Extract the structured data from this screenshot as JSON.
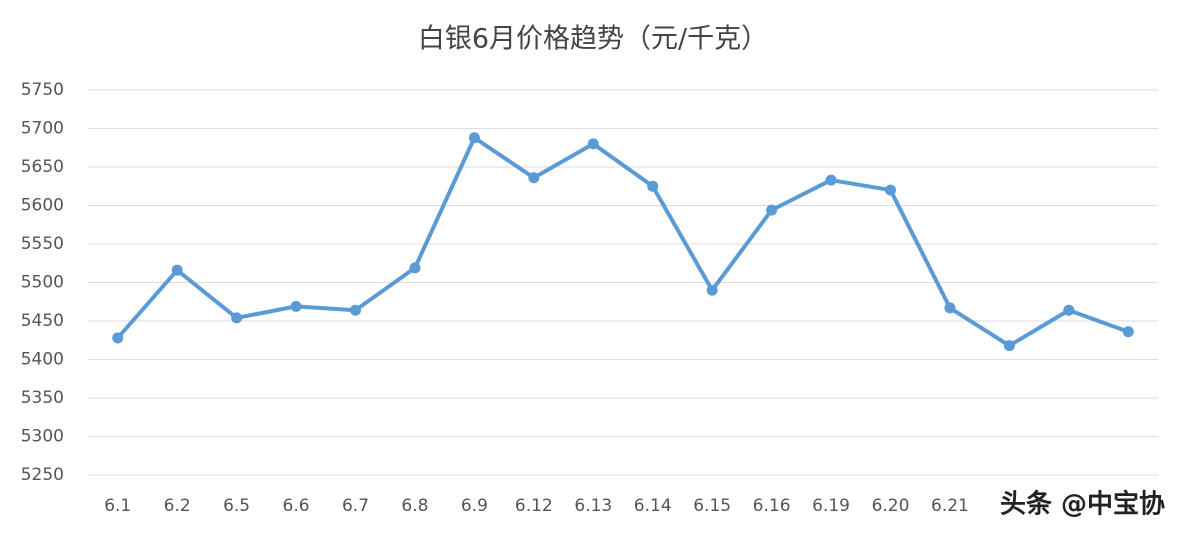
{
  "chart_data": {
    "type": "line",
    "title": "白银6月价格趋势（元/千克）",
    "categories": [
      "6.1",
      "6.2",
      "6.5",
      "6.6",
      "6.7",
      "6.8",
      "6.9",
      "6.12",
      "6.13",
      "6.14",
      "6.15",
      "6.16",
      "6.19",
      "6.20",
      "6.21",
      null,
      null,
      null
    ],
    "series": [
      {
        "name": "白银",
        "color": "#5b9bd5",
        "values": [
          5428,
          5516,
          5454,
          5469,
          5464,
          5519,
          5688,
          5636,
          5680,
          5625,
          5490,
          5594,
          5633,
          5620,
          5467,
          5418,
          5464,
          5436
        ]
      }
    ],
    "ylim": [
      5250,
      5750
    ],
    "yticks": [
      5250,
      5300,
      5350,
      5400,
      5450,
      5500,
      5550,
      5600,
      5650,
      5700,
      5750
    ],
    "grid": true,
    "watermark": "头条 @中宝协"
  }
}
